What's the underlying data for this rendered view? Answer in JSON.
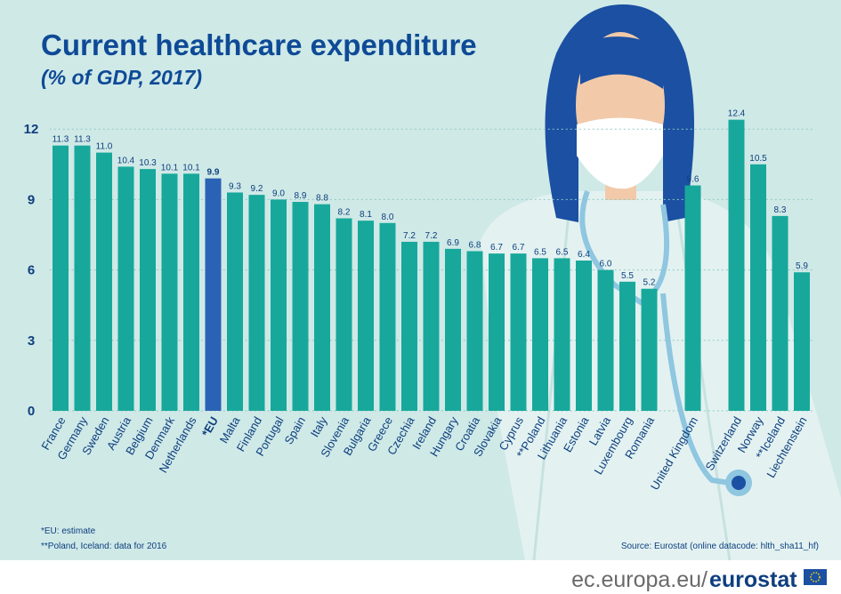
{
  "chart_data": {
    "type": "bar",
    "title": "Current healthcare expenditure",
    "subtitle": "(% of GDP, 2017)",
    "categories": [
      "France",
      "Germany",
      "Sweden",
      "Austria",
      "Belgium",
      "Denmark",
      "Netherlands",
      "*EU",
      "Malta",
      "Finland",
      "Portugal",
      "Spain",
      "Italy",
      "Slovenia",
      "Bulgaria",
      "Greece",
      "Czechia",
      "Ireland",
      "Hungary",
      "Croatia",
      "Slovakia",
      "Cyprus",
      "**Poland",
      "Lithuania",
      "Estonia",
      "Latvia",
      "Luxembourg",
      "Romania",
      null,
      "United Kingdom",
      null,
      "Switzerland",
      "Norway",
      "**Iceland",
      "Liechtenstein"
    ],
    "values": [
      11.3,
      11.3,
      11.0,
      10.4,
      10.3,
      10.1,
      10.1,
      9.9,
      9.3,
      9.2,
      9.0,
      8.9,
      8.8,
      8.2,
      8.1,
      8.0,
      7.2,
      7.2,
      6.9,
      6.8,
      6.7,
      6.7,
      6.5,
      6.5,
      6.4,
      6.0,
      5.5,
      5.2,
      null,
      9.6,
      null,
      12.4,
      10.5,
      8.3,
      5.9
    ],
    "value_labels": [
      "11.3",
      "11.3",
      "11.0",
      "10.4",
      "10.3",
      "10.1",
      "10.1",
      "9.9",
      "9.3",
      "9.2",
      "9.0",
      "8.9",
      "8.8",
      "8.2",
      "8.1",
      "8.0",
      "7.2",
      "7.2",
      "6.9",
      "6.8",
      "6.7",
      "6.7",
      "6.5",
      "6.5",
      "6.4",
      "6.0",
      "5.5",
      "5.2",
      null,
      "9.6",
      null,
      "12.4",
      "10.5",
      "8.3",
      "5.9"
    ],
    "color": "#17a89b",
    "colors": [
      "#17a89b",
      "#17a89b",
      "#17a89b",
      "#17a89b",
      "#17a89b",
      "#17a89b",
      "#17a89b",
      "#2a63b5",
      "#17a89b",
      "#17a89b",
      "#17a89b",
      "#17a89b",
      "#17a89b",
      "#17a89b",
      "#17a89b",
      "#17a89b",
      "#17a89b",
      "#17a89b",
      "#17a89b",
      "#17a89b",
      "#17a89b",
      "#17a89b",
      "#17a89b",
      "#17a89b",
      "#17a89b",
      "#17a89b",
      "#17a89b",
      "#17a89b",
      null,
      "#17a89b",
      null,
      "#17a89b",
      "#17a89b",
      "#17a89b",
      "#17a89b"
    ],
    "ylim": [
      0,
      12.5
    ],
    "yticks": [
      0,
      3,
      6,
      9,
      12
    ],
    "grid": true,
    "notes": [
      "*EU: estimate",
      "**Poland, Iceland: data for 2016"
    ],
    "source": "Source:  Eurostat (online datacode: hlth_sha11_hf)",
    "footer": {
      "site": "ec.europa.eu/",
      "brand": "eurostat"
    }
  }
}
